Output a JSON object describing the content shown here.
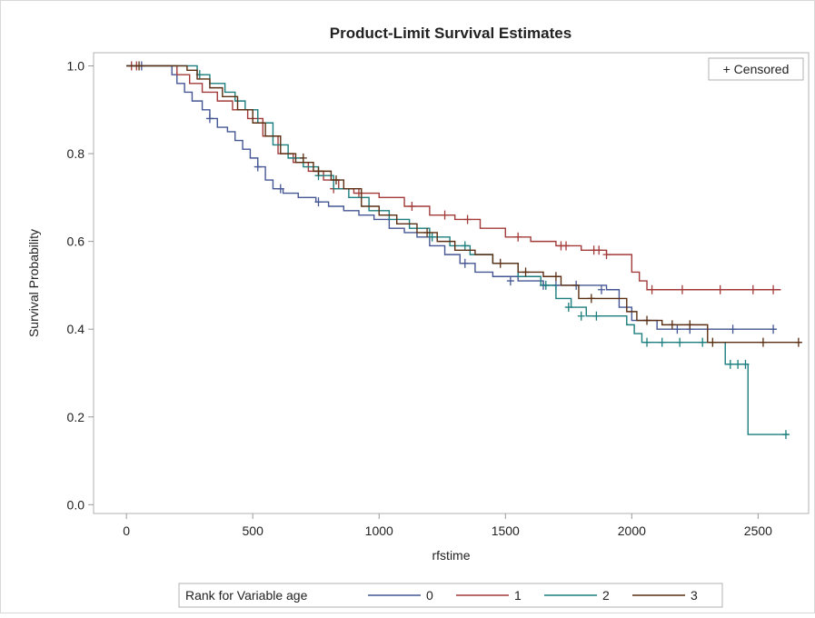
{
  "chart_data": {
    "type": "line",
    "title": "Product-Limit Survival Estimates",
    "xlabel": "rfstime",
    "ylabel": "Survival Probability",
    "xlim": [
      -130,
      2700
    ],
    "ylim": [
      -0.02,
      1.03
    ],
    "x_ticks": [
      0,
      500,
      1000,
      1500,
      2000,
      2500
    ],
    "y_ticks": [
      0.0,
      0.2,
      0.4,
      0.6,
      0.8,
      1.0
    ],
    "x_tick_labels": [
      "0",
      "500",
      "1000",
      "1500",
      "2000",
      "2500"
    ],
    "y_tick_labels": [
      "0.0",
      "0.2",
      "0.4",
      "0.6",
      "0.8",
      "1.0"
    ],
    "grid": false,
    "censored_legend": "+ Censored",
    "legend": {
      "title": "Rank for Variable age",
      "placement": "bottom",
      "entries": [
        "0",
        "1",
        "2",
        "3"
      ]
    },
    "series": [
      {
        "name": "0",
        "color": "#445694",
        "steps": [
          [
            0,
            1.0
          ],
          [
            150,
            1.0
          ],
          [
            180,
            0.98
          ],
          [
            200,
            0.96
          ],
          [
            230,
            0.94
          ],
          [
            260,
            0.92
          ],
          [
            300,
            0.9
          ],
          [
            330,
            0.88
          ],
          [
            360,
            0.86
          ],
          [
            400,
            0.85
          ],
          [
            430,
            0.83
          ],
          [
            460,
            0.81
          ],
          [
            490,
            0.79
          ],
          [
            520,
            0.77
          ],
          [
            550,
            0.74
          ],
          [
            580,
            0.72
          ],
          [
            620,
            0.71
          ],
          [
            680,
            0.7
          ],
          [
            750,
            0.69
          ],
          [
            800,
            0.68
          ],
          [
            860,
            0.67
          ],
          [
            920,
            0.66
          ],
          [
            980,
            0.65
          ],
          [
            1040,
            0.63
          ],
          [
            1100,
            0.62
          ],
          [
            1150,
            0.61
          ],
          [
            1200,
            0.59
          ],
          [
            1260,
            0.57
          ],
          [
            1320,
            0.55
          ],
          [
            1380,
            0.53
          ],
          [
            1450,
            0.52
          ],
          [
            1550,
            0.51
          ],
          [
            1650,
            0.5
          ],
          [
            1750,
            0.5
          ],
          [
            1900,
            0.49
          ],
          [
            1950,
            0.45
          ],
          [
            2000,
            0.42
          ],
          [
            2100,
            0.4
          ],
          [
            2570,
            0.4
          ]
        ],
        "censored": [
          [
            60,
            1.0
          ],
          [
            330,
            0.88
          ],
          [
            520,
            0.77
          ],
          [
            610,
            0.72
          ],
          [
            760,
            0.69
          ],
          [
            1340,
            0.55
          ],
          [
            1520,
            0.51
          ],
          [
            1650,
            0.5
          ],
          [
            1700,
            0.5
          ],
          [
            1780,
            0.5
          ],
          [
            1880,
            0.49
          ],
          [
            2180,
            0.4
          ],
          [
            2230,
            0.4
          ],
          [
            2400,
            0.4
          ],
          [
            2560,
            0.4
          ]
        ]
      },
      {
        "name": "1",
        "color": "#a23a3a",
        "steps": [
          [
            0,
            1.0
          ],
          [
            150,
            1.0
          ],
          [
            200,
            0.98
          ],
          [
            250,
            0.96
          ],
          [
            300,
            0.94
          ],
          [
            360,
            0.92
          ],
          [
            420,
            0.9
          ],
          [
            480,
            0.88
          ],
          [
            540,
            0.84
          ],
          [
            600,
            0.8
          ],
          [
            660,
            0.78
          ],
          [
            720,
            0.76
          ],
          [
            780,
            0.74
          ],
          [
            840,
            0.72
          ],
          [
            900,
            0.71
          ],
          [
            1000,
            0.7
          ],
          [
            1100,
            0.68
          ],
          [
            1200,
            0.66
          ],
          [
            1300,
            0.65
          ],
          [
            1400,
            0.63
          ],
          [
            1500,
            0.61
          ],
          [
            1600,
            0.6
          ],
          [
            1700,
            0.59
          ],
          [
            1800,
            0.58
          ],
          [
            1900,
            0.57
          ],
          [
            2000,
            0.53
          ],
          [
            2030,
            0.51
          ],
          [
            2060,
            0.49
          ],
          [
            2590,
            0.49
          ]
        ],
        "censored": [
          [
            20,
            1.0
          ],
          [
            40,
            1.0
          ],
          [
            820,
            0.72
          ],
          [
            920,
            0.71
          ],
          [
            1130,
            0.68
          ],
          [
            1260,
            0.66
          ],
          [
            1350,
            0.65
          ],
          [
            1550,
            0.61
          ],
          [
            1720,
            0.59
          ],
          [
            1740,
            0.59
          ],
          [
            1850,
            0.58
          ],
          [
            1870,
            0.58
          ],
          [
            1900,
            0.57
          ],
          [
            2080,
            0.49
          ],
          [
            2200,
            0.49
          ],
          [
            2350,
            0.49
          ],
          [
            2480,
            0.49
          ],
          [
            2560,
            0.49
          ]
        ]
      },
      {
        "name": "2",
        "color": "#1b7d7d",
        "steps": [
          [
            0,
            1.0
          ],
          [
            240,
            1.0
          ],
          [
            280,
            0.98
          ],
          [
            330,
            0.96
          ],
          [
            390,
            0.94
          ],
          [
            430,
            0.92
          ],
          [
            470,
            0.9
          ],
          [
            520,
            0.87
          ],
          [
            580,
            0.82
          ],
          [
            640,
            0.79
          ],
          [
            700,
            0.77
          ],
          [
            760,
            0.75
          ],
          [
            820,
            0.72
          ],
          [
            880,
            0.7
          ],
          [
            960,
            0.67
          ],
          [
            1040,
            0.65
          ],
          [
            1120,
            0.63
          ],
          [
            1200,
            0.61
          ],
          [
            1280,
            0.59
          ],
          [
            1360,
            0.57
          ],
          [
            1450,
            0.55
          ],
          [
            1550,
            0.52
          ],
          [
            1640,
            0.5
          ],
          [
            1700,
            0.47
          ],
          [
            1760,
            0.45
          ],
          [
            1820,
            0.43
          ],
          [
            1980,
            0.41
          ],
          [
            2010,
            0.39
          ],
          [
            2040,
            0.37
          ],
          [
            2370,
            0.32
          ],
          [
            2460,
            0.16
          ],
          [
            2620,
            0.16
          ]
        ],
        "censored": [
          [
            290,
            0.98
          ],
          [
            760,
            0.75
          ],
          [
            1210,
            0.61
          ],
          [
            1340,
            0.59
          ],
          [
            1660,
            0.5
          ],
          [
            1750,
            0.45
          ],
          [
            1800,
            0.43
          ],
          [
            1860,
            0.43
          ],
          [
            2060,
            0.37
          ],
          [
            2120,
            0.37
          ],
          [
            2190,
            0.37
          ],
          [
            2280,
            0.37
          ],
          [
            2390,
            0.32
          ],
          [
            2420,
            0.32
          ],
          [
            2450,
            0.32
          ],
          [
            2610,
            0.16
          ]
        ]
      },
      {
        "name": "3",
        "color": "#5a2e12",
        "steps": [
          [
            0,
            1.0
          ],
          [
            200,
            1.0
          ],
          [
            240,
            0.99
          ],
          [
            280,
            0.97
          ],
          [
            330,
            0.95
          ],
          [
            380,
            0.93
          ],
          [
            440,
            0.9
          ],
          [
            500,
            0.87
          ],
          [
            550,
            0.84
          ],
          [
            610,
            0.8
          ],
          [
            670,
            0.78
          ],
          [
            740,
            0.76
          ],
          [
            810,
            0.74
          ],
          [
            860,
            0.72
          ],
          [
            930,
            0.68
          ],
          [
            1000,
            0.66
          ],
          [
            1070,
            0.64
          ],
          [
            1150,
            0.62
          ],
          [
            1230,
            0.6
          ],
          [
            1300,
            0.58
          ],
          [
            1380,
            0.57
          ],
          [
            1450,
            0.55
          ],
          [
            1550,
            0.53
          ],
          [
            1650,
            0.52
          ],
          [
            1720,
            0.5
          ],
          [
            1790,
            0.47
          ],
          [
            1980,
            0.44
          ],
          [
            2020,
            0.42
          ],
          [
            2120,
            0.41
          ],
          [
            2300,
            0.37
          ],
          [
            2670,
            0.37
          ]
        ],
        "censored": [
          [
            50,
            1.0
          ],
          [
            700,
            0.79
          ],
          [
            760,
            0.76
          ],
          [
            830,
            0.74
          ],
          [
            1190,
            0.62
          ],
          [
            1480,
            0.55
          ],
          [
            1580,
            0.53
          ],
          [
            1700,
            0.52
          ],
          [
            1840,
            0.47
          ],
          [
            2060,
            0.42
          ],
          [
            2160,
            0.41
          ],
          [
            2230,
            0.41
          ],
          [
            2320,
            0.37
          ],
          [
            2520,
            0.37
          ],
          [
            2660,
            0.37
          ]
        ]
      }
    ]
  }
}
